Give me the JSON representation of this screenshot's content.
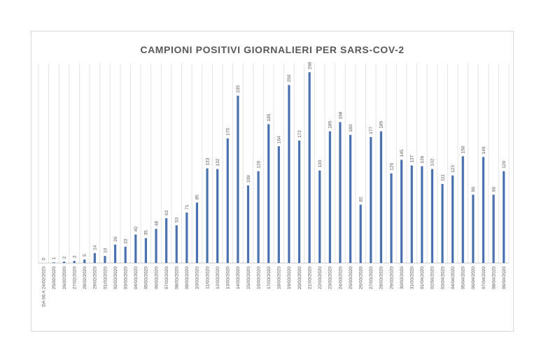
{
  "chart_data": {
    "type": "bar",
    "title": "CAMPIONI POSITIVI GIORNALIERI PER SARS-COV-2",
    "xlabel": "",
    "ylabel": "",
    "grid": "vertical",
    "legend": "none",
    "bar_color": "#4a72b0",
    "ylim": [
      0,
      280
    ],
    "categories": [
      "DA 06 A 24/02/2020",
      "25/02/2020",
      "26/02/2020",
      "27/02/2020",
      "28/02/2020",
      "29/02/2020",
      "01/03/2020",
      "02/03/2020",
      "03/03/2020",
      "04/03/2020",
      "05/03/2020",
      "06/03/2020",
      "07/03/2020",
      "08/03/2020",
      "09/03/2020",
      "10/03/2020",
      "11/03/2020",
      "12/03/2020",
      "13/03/2020",
      "14/03/2020",
      "15/03/2020",
      "16/03/2020",
      "17/03/2020",
      "18/03/2020",
      "19/03/2020",
      "20/03/2020",
      "21/03/2020",
      "22/03/2020",
      "23/03/2020",
      "24/03/2020",
      "25/03/2020",
      "26/03/2020",
      "27/03/2020",
      "28/03/2020",
      "29/03/2020",
      "30/03/2020",
      "31/03/2020",
      "01/04/2020",
      "02/04/2020",
      "03/04/2020",
      "04/04/2020",
      "05/04/2020",
      "06/04/2020",
      "07/04/2020",
      "08/04/2020",
      "09/04/2020"
    ],
    "values": [
      0,
      1,
      2,
      3,
      5,
      14,
      10,
      26,
      23,
      40,
      35,
      48,
      63,
      53,
      71,
      85,
      133,
      132,
      175,
      235,
      109,
      129,
      195,
      164,
      250,
      172,
      268,
      130,
      185,
      198,
      180,
      82,
      177,
      185,
      126,
      145,
      137,
      136,
      132,
      111,
      123,
      150,
      96,
      149,
      96,
      129
    ]
  }
}
